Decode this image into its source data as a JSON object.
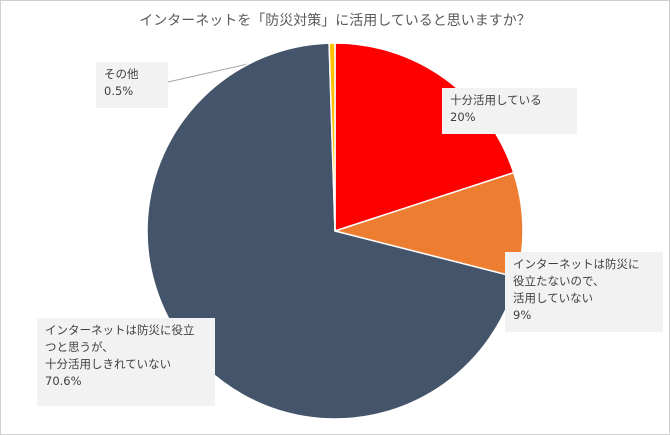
{
  "chart_data": {
    "type": "pie",
    "title": "インターネットを「防災対策」に活用していると思いますか？",
    "slices": [
      {
        "lines": [
          "十分活用している",
          "20%"
        ],
        "value": 20,
        "color": "#ff0000"
      },
      {
        "lines": [
          "インターネットは防災に",
          "役立たないので、",
          "活用していない",
          "9%"
        ],
        "value": 9,
        "color": "#ed7d31"
      },
      {
        "lines": [
          "インターネットは防災に役立",
          "つと思うが、",
          "十分活用しきれていない",
          "70.6%"
        ],
        "value": 70.6,
        "color": "#44546a"
      },
      {
        "lines": [
          "その他",
          "0.5%"
        ],
        "value": 0.5,
        "color": "#ffc000"
      }
    ],
    "start_angle_deg": 0,
    "direction": "clockwise"
  }
}
